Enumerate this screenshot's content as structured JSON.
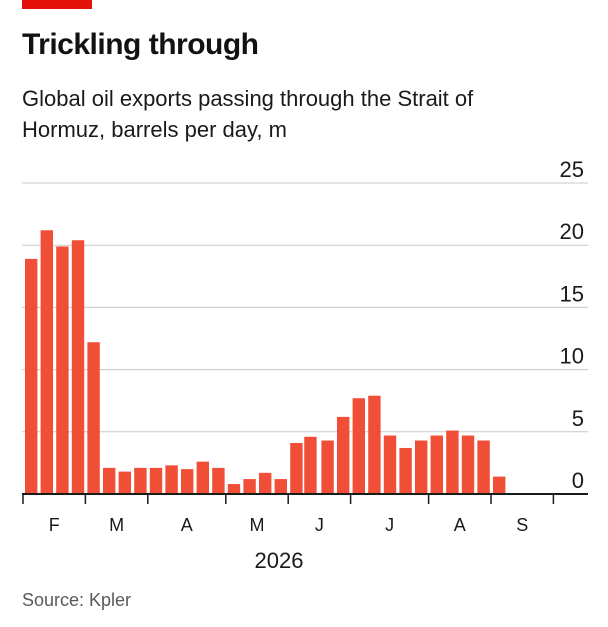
{
  "header": {
    "title": "Trickling through",
    "subtitle": "Global oil exports passing through the Strait of Hormuz, barrels per day, m"
  },
  "source": "Source: Kpler",
  "colors": {
    "accent": "#e3120b",
    "bar": "#f04e37",
    "grid": "#c8c8c8",
    "axis": "#1a1a1a"
  },
  "chart_data": {
    "type": "bar",
    "title": "Trickling through",
    "subtitle": "Global oil exports passing through the Strait of Hormuz, barrels per day, m",
    "xlabel": "2026",
    "ylabel": "",
    "ylim": [
      0,
      25
    ],
    "y_ticks": [
      0,
      5,
      10,
      15,
      20,
      25
    ],
    "y_axis_side": "right",
    "grid": true,
    "month_labels": [
      "F",
      "M",
      "A",
      "M",
      "J",
      "J",
      "A",
      "S"
    ],
    "month_boundaries_week_index": [
      0,
      4,
      8,
      13,
      17,
      21,
      26,
      30,
      34
    ],
    "x": [
      1,
      2,
      3,
      4,
      5,
      6,
      7,
      8,
      9,
      10,
      11,
      12,
      13,
      14,
      15,
      16,
      17,
      18,
      18.9,
      20,
      21,
      22,
      23,
      24,
      25,
      26,
      27,
      28,
      29,
      30,
      31,
      32
    ],
    "values": [
      18.9,
      21.2,
      19.9,
      20.4,
      12.2,
      2.1,
      1.8,
      2.1,
      2.1,
      2.3,
      2.0,
      2.6,
      2.1,
      0.8,
      1.2,
      1.7,
      1.2,
      4.1,
      4.6,
      4.3,
      6.2,
      7.7,
      7.9,
      4.7,
      3.7,
      4.3,
      4.7,
      5.1,
      4.7,
      4.3,
      1.4,
      0
    ]
  }
}
